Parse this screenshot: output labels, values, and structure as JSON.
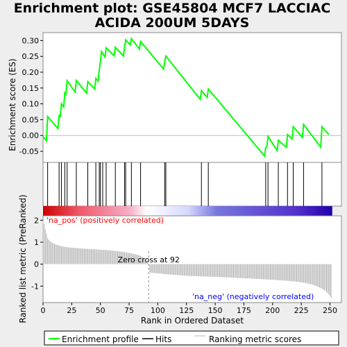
{
  "chart_data": {
    "type": "line",
    "title_line1": "Enrichment plot: GSE45804 MCF7 LACCIAC",
    "title_line2": "ACIDA 200UM 5DAYS",
    "x_label": "Rank in Ordered Dataset",
    "es_label": "Enrichment score (ES)",
    "metric_label": "Ranked list metric (PreRanked)",
    "x_range": [
      0,
      260
    ],
    "x_ticks": [
      "0",
      "25",
      "50",
      "75",
      "100",
      "125",
      "150",
      "175",
      "200",
      "225",
      "250"
    ],
    "es_range": [
      -0.085,
      0.325
    ],
    "es_ticks": [
      "0.30",
      "0.25",
      "0.20",
      "0.15",
      "0.10",
      "0.05",
      "0.00",
      "-0.05"
    ],
    "metric_range": [
      -1.75,
      2.2
    ],
    "metric_ticks": [
      "2",
      "1",
      "0",
      "-1"
    ],
    "hits": [
      4,
      14,
      16,
      19,
      21,
      29,
      39,
      46,
      49,
      50,
      52,
      55,
      63,
      71,
      72,
      77,
      85,
      106,
      107,
      138,
      144,
      194,
      196,
      205,
      213,
      218,
      227,
      243
    ],
    "es_profile": {
      "x": [
        0,
        3,
        4,
        13,
        14,
        15,
        16,
        18,
        19,
        20,
        21,
        28,
        29,
        38,
        39,
        45,
        46,
        48,
        49,
        50,
        51,
        54,
        55,
        62,
        63,
        70,
        71,
        72,
        76,
        77,
        84,
        85,
        105,
        106,
        107,
        137,
        138,
        143,
        144,
        193,
        194,
        195,
        196,
        204,
        205,
        212,
        213,
        217,
        218,
        226,
        227,
        242,
        243,
        249
      ],
      "y": [
        -0.003,
        -0.017,
        0.06,
        0.022,
        0.063,
        0.06,
        0.1,
        0.09,
        0.135,
        0.13,
        0.173,
        0.137,
        0.174,
        0.134,
        0.17,
        0.147,
        0.18,
        0.172,
        0.205,
        0.235,
        0.265,
        0.248,
        0.277,
        0.252,
        0.279,
        0.251,
        0.277,
        0.302,
        0.286,
        0.306,
        0.273,
        0.297,
        0.21,
        0.233,
        0.251,
        0.114,
        0.142,
        0.12,
        0.147,
        -0.065,
        -0.04,
        -0.035,
        -0.003,
        -0.048,
        -0.015,
        -0.037,
        0.003,
        -0.011,
        0.028,
        -0.006,
        0.035,
        -0.037,
        0.028,
        0.003
      ]
    },
    "metric_profile": {
      "x": [
        0,
        2,
        4,
        6,
        8,
        10,
        12,
        15,
        20,
        25,
        30,
        40,
        50,
        60,
        70,
        80,
        85,
        88,
        90,
        91,
        92,
        93,
        100,
        110,
        125,
        150,
        175,
        200,
        220,
        230,
        235,
        240,
        243,
        246,
        248,
        250,
        251
      ],
      "y": [
        2.05,
        1.6,
        1.18,
        1.05,
        0.98,
        0.92,
        0.88,
        0.83,
        0.78,
        0.75,
        0.73,
        0.69,
        0.66,
        0.62,
        0.56,
        0.46,
        0.38,
        0.28,
        0.15,
        0.06,
        0.0,
        -0.38,
        -0.42,
        -0.47,
        -0.53,
        -0.58,
        -0.64,
        -0.71,
        -0.79,
        -0.87,
        -0.94,
        -1.04,
        -1.12,
        -1.22,
        -1.32,
        -1.45,
        -1.55
      ]
    },
    "zero_cross_rank": 92,
    "zero_cross_label": "Zero cross at 92",
    "pos_label": "'na_pos' (positively correlated)",
    "neg_label": "'na_neg' (negatively correlated)",
    "legend": {
      "enrichment": "Enrichment profile",
      "hits": "Hits",
      "metric": "Ranking metric scores"
    },
    "colors": {
      "es_line": "#00ff00",
      "hit_line": "#000000",
      "metric_bar": "#b0b0b0",
      "pos_text": "#ff0000",
      "neg_text": "#0000ff",
      "heat_left": "#cc0000",
      "heat_mid": "#ffffff",
      "heat_right": "#2200aa"
    }
  }
}
